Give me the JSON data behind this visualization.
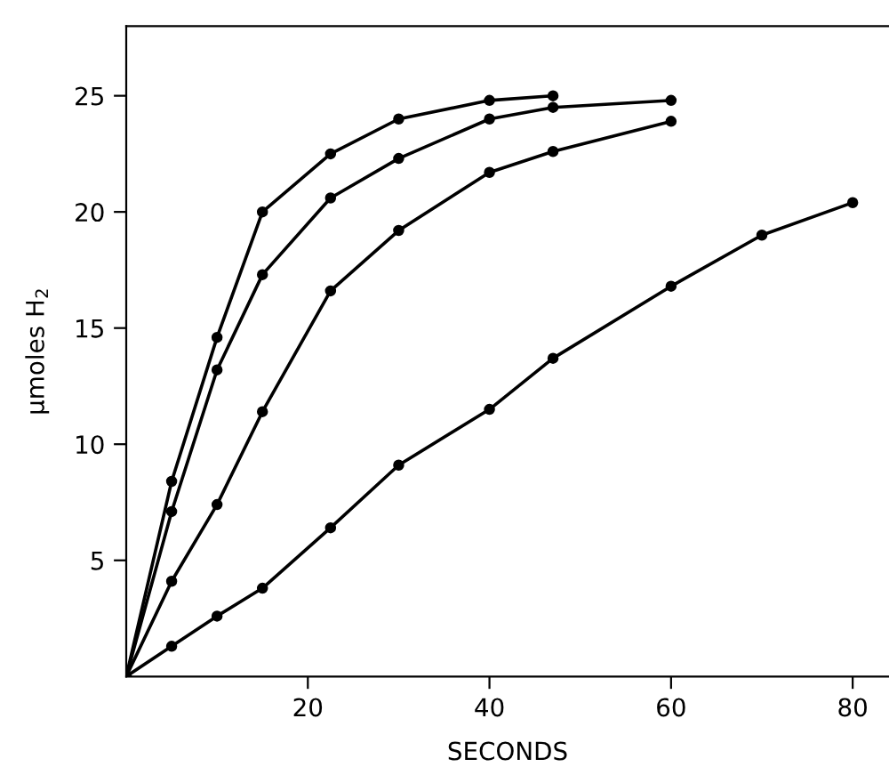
{
  "chart_data": {
    "type": "line",
    "xlabel": "SECONDS",
    "ylabel": "μmoles H$_{2}$",
    "xlim": [
      0,
      84
    ],
    "ylim": [
      0,
      28
    ],
    "xticks": [
      20,
      40,
      60,
      80
    ],
    "yticks": [
      5,
      10,
      15,
      20,
      25
    ],
    "grid": false,
    "legend": false,
    "marker": "circle",
    "line_style": "solid",
    "series": [
      {
        "color": "#000000",
        "x": [
          0,
          5,
          10,
          15,
          22.5,
          30,
          40,
          47
        ],
        "values": [
          0,
          8.4,
          14.6,
          20.0,
          22.5,
          24.0,
          24.8,
          25.0
        ]
      },
      {
        "color": "#000000",
        "x": [
          0,
          5,
          10,
          15,
          22.5,
          30,
          40,
          47,
          60
        ],
        "values": [
          0,
          7.1,
          13.2,
          17.3,
          20.6,
          22.3,
          24.0,
          24.5,
          24.8
        ]
      },
      {
        "color": "#000000",
        "x": [
          0,
          5,
          10,
          15,
          22.5,
          30,
          40,
          47,
          60
        ],
        "values": [
          0,
          4.1,
          7.4,
          11.4,
          16.6,
          19.2,
          21.7,
          22.6,
          23.9
        ]
      },
      {
        "color": "#000000",
        "x": [
          0,
          5,
          10,
          15,
          22.5,
          30,
          40,
          47,
          60,
          70,
          80
        ],
        "values": [
          0,
          1.3,
          2.6,
          3.8,
          6.4,
          9.1,
          11.5,
          13.7,
          16.8,
          19.0,
          20.4
        ]
      }
    ]
  }
}
